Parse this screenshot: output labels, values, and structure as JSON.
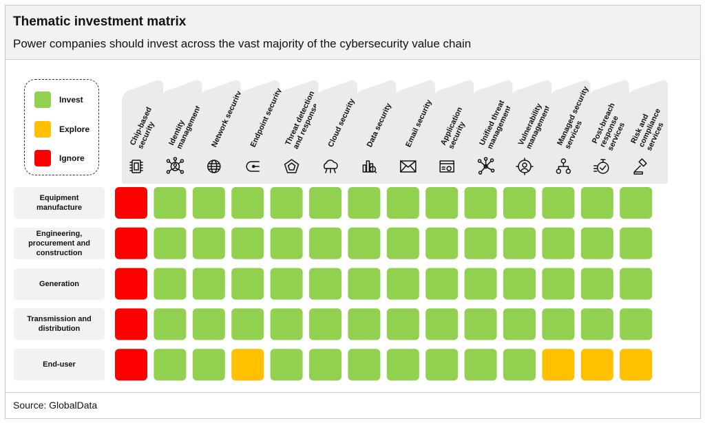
{
  "title": "Thematic investment matrix",
  "subtitle": "Power companies should invest across the vast majority of the cybersecurity value chain",
  "source": "Source: GlobalData",
  "colors": {
    "Invest": "#92d050",
    "Explore": "#ffc000",
    "Ignore": "#ff0000",
    "header_tab": "#ebebeb"
  },
  "legend": [
    {
      "label": "Invest",
      "status": "Invest"
    },
    {
      "label": "Explore",
      "status": "Explore"
    },
    {
      "label": "Ignore",
      "status": "Ignore"
    }
  ],
  "chart_data": {
    "type": "heatmap",
    "title": "Thematic investment matrix",
    "subtitle": "Power companies should invest across the vast majority of the cybersecurity value chain",
    "legend_position": "top-left",
    "columns": [
      {
        "label": [
          "Chip-based",
          "security"
        ],
        "icon": "chip-icon"
      },
      {
        "label": [
          "Identity",
          "management"
        ],
        "icon": "identity-network-icon"
      },
      {
        "label": [
          "Network security"
        ],
        "icon": "globe-network-icon"
      },
      {
        "label": [
          "Endpoint security"
        ],
        "icon": "endpoint-icon"
      },
      {
        "label": [
          "Threat detection",
          "and response"
        ],
        "icon": "radar-pentagon-icon"
      },
      {
        "label": [
          "Cloud security"
        ],
        "icon": "cloud-icon"
      },
      {
        "label": [
          "Data security"
        ],
        "icon": "data-search-icon"
      },
      {
        "label": [
          "Email security"
        ],
        "icon": "envelope-icon"
      },
      {
        "label": [
          "Application",
          "security"
        ],
        "icon": "app-window-gear-icon"
      },
      {
        "label": [
          "Unified threat",
          "management"
        ],
        "icon": "hub-nodes-icon"
      },
      {
        "label": [
          "Vulnerability",
          "management"
        ],
        "icon": "target-user-icon"
      },
      {
        "label": [
          "Managed security",
          "services"
        ],
        "icon": "hierarchy-icon"
      },
      {
        "label": [
          "Post-breach",
          "response",
          "services"
        ],
        "icon": "stopwatch-icon"
      },
      {
        "label": [
          "Risk and",
          "compliance",
          "services"
        ],
        "icon": "gavel-icon"
      }
    ],
    "rows": [
      {
        "label": [
          "Equipment",
          "manufacture"
        ],
        "values": [
          "Ignore",
          "Invest",
          "Invest",
          "Invest",
          "Invest",
          "Invest",
          "Invest",
          "Invest",
          "Invest",
          "Invest",
          "Invest",
          "Invest",
          "Invest",
          "Invest"
        ]
      },
      {
        "label": [
          "Engineering,",
          "procurement and",
          "construction"
        ],
        "values": [
          "Ignore",
          "Invest",
          "Invest",
          "Invest",
          "Invest",
          "Invest",
          "Invest",
          "Invest",
          "Invest",
          "Invest",
          "Invest",
          "Invest",
          "Invest",
          "Invest"
        ]
      },
      {
        "label": [
          "Generation"
        ],
        "values": [
          "Ignore",
          "Invest",
          "Invest",
          "Invest",
          "Invest",
          "Invest",
          "Invest",
          "Invest",
          "Invest",
          "Invest",
          "Invest",
          "Invest",
          "Invest",
          "Invest"
        ]
      },
      {
        "label": [
          "Transmission and",
          "distribution"
        ],
        "values": [
          "Ignore",
          "Invest",
          "Invest",
          "Invest",
          "Invest",
          "Invest",
          "Invest",
          "Invest",
          "Invest",
          "Invest",
          "Invest",
          "Invest",
          "Invest",
          "Invest"
        ]
      },
      {
        "label": [
          "End-user"
        ],
        "values": [
          "Ignore",
          "Invest",
          "Invest",
          "Explore",
          "Invest",
          "Invest",
          "Invest",
          "Invest",
          "Invest",
          "Invest",
          "Invest",
          "Explore",
          "Explore",
          "Explore"
        ]
      }
    ]
  }
}
